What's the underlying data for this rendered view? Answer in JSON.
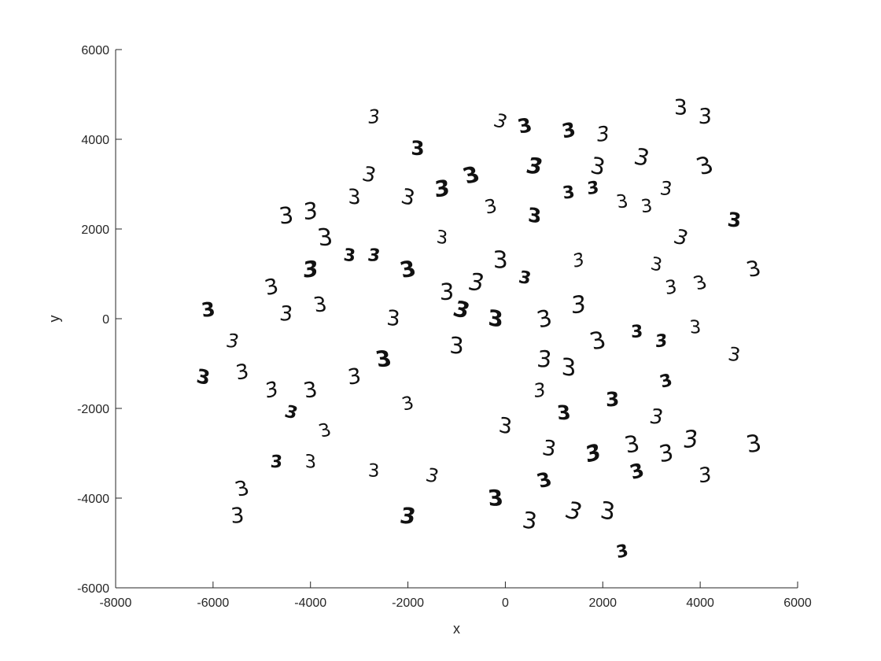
{
  "chart_data": {
    "type": "scatter",
    "title": "",
    "xlabel": "x",
    "ylabel": "y",
    "xlim": [
      -8000,
      6000
    ],
    "ylim": [
      -6000,
      6000
    ],
    "xticks": [
      "-8000",
      "-6000",
      "-4000",
      "-2000",
      "0",
      "2000",
      "4000",
      "6000"
    ],
    "yticks": [
      "-6000",
      "-4000",
      "-2000",
      "0",
      "2000",
      "4000",
      "6000"
    ],
    "grid": false,
    "legend": "none",
    "marker": "handwritten digit image",
    "points": [
      {
        "x": -2700,
        "y": 4500,
        "label": "3"
      },
      {
        "x": -1800,
        "y": 3800,
        "label": "3"
      },
      {
        "x": -2800,
        "y": 3200,
        "label": "3"
      },
      {
        "x": -3100,
        "y": 2700,
        "label": "3"
      },
      {
        "x": -2000,
        "y": 2700,
        "label": "3"
      },
      {
        "x": -1300,
        "y": 2900,
        "label": "3"
      },
      {
        "x": -700,
        "y": 3200,
        "label": "3"
      },
      {
        "x": -4500,
        "y": 2300,
        "label": "3"
      },
      {
        "x": -4000,
        "y": 2400,
        "label": "3"
      },
      {
        "x": -3700,
        "y": 1800,
        "label": "3"
      },
      {
        "x": -3200,
        "y": 1400,
        "label": "3"
      },
      {
        "x": -2700,
        "y": 1400,
        "label": "3"
      },
      {
        "x": -1300,
        "y": 1800,
        "label": "3"
      },
      {
        "x": -300,
        "y": 2500,
        "label": "3"
      },
      {
        "x": -100,
        "y": 4400,
        "label": "3"
      },
      {
        "x": 400,
        "y": 4300,
        "label": "3"
      },
      {
        "x": 1300,
        "y": 4200,
        "label": "3"
      },
      {
        "x": 2000,
        "y": 4100,
        "label": "3"
      },
      {
        "x": 3600,
        "y": 4700,
        "label": "3"
      },
      {
        "x": 4100,
        "y": 4500,
        "label": "3"
      },
      {
        "x": 600,
        "y": 3400,
        "label": "3"
      },
      {
        "x": 1900,
        "y": 3400,
        "label": "3"
      },
      {
        "x": 2800,
        "y": 3600,
        "label": "3"
      },
      {
        "x": 4100,
        "y": 3400,
        "label": "3"
      },
      {
        "x": 1300,
        "y": 2800,
        "label": "3"
      },
      {
        "x": 1800,
        "y": 2900,
        "label": "3"
      },
      {
        "x": 2400,
        "y": 2600,
        "label": "3"
      },
      {
        "x": 2900,
        "y": 2500,
        "label": "3"
      },
      {
        "x": 3300,
        "y": 2900,
        "label": "3"
      },
      {
        "x": 600,
        "y": 2300,
        "label": "3"
      },
      {
        "x": 4700,
        "y": 2200,
        "label": "3"
      },
      {
        "x": 3600,
        "y": 1800,
        "label": "3"
      },
      {
        "x": 5100,
        "y": 1100,
        "label": "3"
      },
      {
        "x": -4800,
        "y": 700,
        "label": "3"
      },
      {
        "x": -4000,
        "y": 1100,
        "label": "3"
      },
      {
        "x": -2000,
        "y": 1100,
        "label": "3"
      },
      {
        "x": -1200,
        "y": 600,
        "label": "3"
      },
      {
        "x": -600,
        "y": 800,
        "label": "3"
      },
      {
        "x": -100,
        "y": 1300,
        "label": "3"
      },
      {
        "x": 400,
        "y": 900,
        "label": "3"
      },
      {
        "x": 1500,
        "y": 1300,
        "label": "3"
      },
      {
        "x": 3100,
        "y": 1200,
        "label": "3"
      },
      {
        "x": 3400,
        "y": 700,
        "label": "3"
      },
      {
        "x": 4000,
        "y": 800,
        "label": "3"
      },
      {
        "x": -6100,
        "y": 200,
        "label": "3"
      },
      {
        "x": -4500,
        "y": 100,
        "label": "3"
      },
      {
        "x": -3800,
        "y": 300,
        "label": "3"
      },
      {
        "x": -2300,
        "y": 0,
        "label": "3"
      },
      {
        "x": -900,
        "y": 200,
        "label": "3"
      },
      {
        "x": -200,
        "y": 0,
        "label": "3"
      },
      {
        "x": 800,
        "y": 0,
        "label": "3"
      },
      {
        "x": 1500,
        "y": 300,
        "label": "3"
      },
      {
        "x": 1900,
        "y": -500,
        "label": "3"
      },
      {
        "x": 2700,
        "y": -300,
        "label": "3"
      },
      {
        "x": 3200,
        "y": -500,
        "label": "3"
      },
      {
        "x": 3900,
        "y": -200,
        "label": "3"
      },
      {
        "x": 4700,
        "y": -800,
        "label": "3"
      },
      {
        "x": -5600,
        "y": -500,
        "label": "3"
      },
      {
        "x": -6200,
        "y": -1300,
        "label": "3"
      },
      {
        "x": -5400,
        "y": -1200,
        "label": "3"
      },
      {
        "x": -4800,
        "y": -1600,
        "label": "3"
      },
      {
        "x": -4000,
        "y": -1600,
        "label": "3"
      },
      {
        "x": -3100,
        "y": -1300,
        "label": "3"
      },
      {
        "x": -2500,
        "y": -900,
        "label": "3"
      },
      {
        "x": -1000,
        "y": -600,
        "label": "3"
      },
      {
        "x": 800,
        "y": -900,
        "label": "3"
      },
      {
        "x": 1300,
        "y": -1100,
        "label": "3"
      },
      {
        "x": 3300,
        "y": -1400,
        "label": "3"
      },
      {
        "x": -4400,
        "y": -2100,
        "label": "3"
      },
      {
        "x": -3700,
        "y": -2500,
        "label": "3"
      },
      {
        "x": -2000,
        "y": -1900,
        "label": "3"
      },
      {
        "x": 700,
        "y": -1600,
        "label": "3"
      },
      {
        "x": 1200,
        "y": -2100,
        "label": "3"
      },
      {
        "x": 2200,
        "y": -1800,
        "label": "3"
      },
      {
        "x": 3100,
        "y": -2200,
        "label": "3"
      },
      {
        "x": 0,
        "y": -2400,
        "label": "3"
      },
      {
        "x": 900,
        "y": -2900,
        "label": "3"
      },
      {
        "x": 1800,
        "y": -3000,
        "label": "3"
      },
      {
        "x": 2600,
        "y": -2800,
        "label": "3"
      },
      {
        "x": 3300,
        "y": -3000,
        "label": "3"
      },
      {
        "x": 3800,
        "y": -2700,
        "label": "3"
      },
      {
        "x": 5100,
        "y": -2800,
        "label": "3"
      },
      {
        "x": -4700,
        "y": -3200,
        "label": "3"
      },
      {
        "x": -4000,
        "y": -3200,
        "label": "3"
      },
      {
        "x": -2700,
        "y": -3400,
        "label": "3"
      },
      {
        "x": -1500,
        "y": -3500,
        "label": "3"
      },
      {
        "x": 800,
        "y": -3600,
        "label": "3"
      },
      {
        "x": 2700,
        "y": -3400,
        "label": "3"
      },
      {
        "x": 4100,
        "y": -3500,
        "label": "3"
      },
      {
        "x": -5400,
        "y": -3800,
        "label": "3"
      },
      {
        "x": -5500,
        "y": -4400,
        "label": "3"
      },
      {
        "x": -2000,
        "y": -4400,
        "label": "3"
      },
      {
        "x": -200,
        "y": -4000,
        "label": "3"
      },
      {
        "x": 500,
        "y": -4500,
        "label": "3"
      },
      {
        "x": 1400,
        "y": -4300,
        "label": "3"
      },
      {
        "x": 2100,
        "y": -4300,
        "label": "3"
      },
      {
        "x": 2400,
        "y": -5200,
        "label": "3"
      }
    ]
  }
}
